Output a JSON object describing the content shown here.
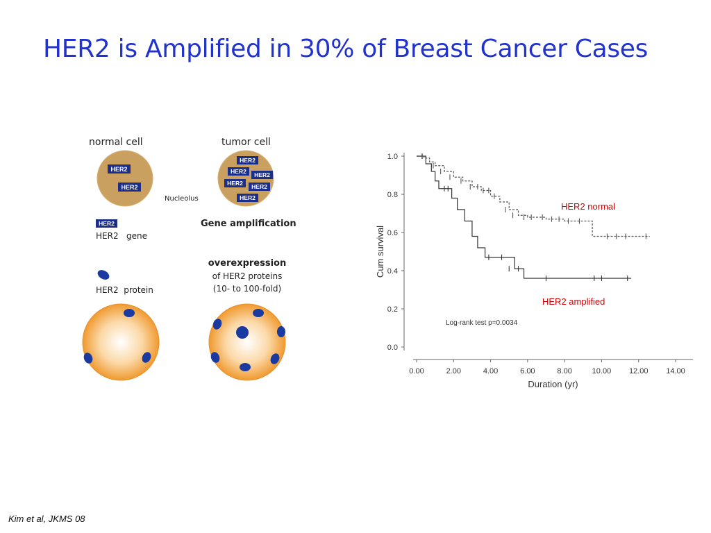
{
  "slide": {
    "title": "HER2 is Amplified in 30% of Breast Cancer Cases",
    "citation": "Kim et al, JKMS 08"
  },
  "diagram": {
    "normal_cell_label": "normal cell",
    "tumor_cell_label": "tumor cell",
    "gene_tag": "HER2",
    "nucleolus_label": "Nucleolus",
    "gene_legend_tag": "HER2",
    "gene_legend_text": "HER2   gene",
    "gene_amplification_label": "Gene amplification",
    "protein_legend_text": "HER2  protein",
    "overexpression_line1": "overexpression",
    "overexpression_line2": "of HER2 proteins",
    "overexpression_line3": "(10- to 100-fold)",
    "colors": {
      "cell": "#c9a060",
      "membrane": "#f0a040",
      "gene": "#1a2e8a",
      "protein": "#1a3aa0"
    }
  },
  "chart_data": {
    "type": "line",
    "xlabel": "Duration (yr)",
    "ylabel": "Cum survival",
    "xlim": [
      0,
      14
    ],
    "ylim": [
      0,
      1
    ],
    "x_ticks": [
      "0.00",
      "2.00",
      "4.00",
      "6.00",
      "8.00",
      "10.00",
      "12.00",
      "14.00"
    ],
    "y_ticks": [
      "0.0",
      "0.2",
      "0.4",
      "0.6",
      "0.8",
      "1.0"
    ],
    "annotation": "Log-rank test p=0.0034",
    "series": [
      {
        "name": "HER2 normal",
        "style": "dashed",
        "color": "#555555",
        "label_color": "#cc0000",
        "steps": [
          [
            0,
            1.0
          ],
          [
            0.4,
            0.99
          ],
          [
            0.7,
            0.97
          ],
          [
            1.0,
            0.95
          ],
          [
            1.5,
            0.92
          ],
          [
            2.0,
            0.89
          ],
          [
            2.5,
            0.87
          ],
          [
            3.0,
            0.84
          ],
          [
            3.5,
            0.82
          ],
          [
            4.0,
            0.79
          ],
          [
            4.5,
            0.76
          ],
          [
            5.0,
            0.72
          ],
          [
            5.5,
            0.69
          ],
          [
            6.0,
            0.68
          ],
          [
            7.0,
            0.67
          ],
          [
            8.0,
            0.66
          ],
          [
            9.5,
            0.58
          ],
          [
            12.6,
            0.58
          ]
        ],
        "censored": [
          [
            0.3,
            1.0
          ],
          [
            0.9,
            0.95
          ],
          [
            1.3,
            0.92
          ],
          [
            1.8,
            0.89
          ],
          [
            2.4,
            0.87
          ],
          [
            2.9,
            0.84
          ],
          [
            3.3,
            0.84
          ],
          [
            3.6,
            0.82
          ],
          [
            3.9,
            0.82
          ],
          [
            4.2,
            0.79
          ],
          [
            4.8,
            0.72
          ],
          [
            5.2,
            0.69
          ],
          [
            5.8,
            0.68
          ],
          [
            6.2,
            0.68
          ],
          [
            6.8,
            0.68
          ],
          [
            7.3,
            0.67
          ],
          [
            7.7,
            0.67
          ],
          [
            8.2,
            0.66
          ],
          [
            8.8,
            0.66
          ],
          [
            10.3,
            0.58
          ],
          [
            10.8,
            0.58
          ],
          [
            11.3,
            0.58
          ],
          [
            12.4,
            0.58
          ]
        ]
      },
      {
        "name": "HER2 amplified",
        "style": "solid",
        "color": "#333333",
        "label_color": "#cc0000",
        "steps": [
          [
            0,
            1.0
          ],
          [
            0.5,
            0.96
          ],
          [
            0.8,
            0.92
          ],
          [
            1.0,
            0.87
          ],
          [
            1.2,
            0.83
          ],
          [
            1.9,
            0.78
          ],
          [
            2.2,
            0.72
          ],
          [
            2.6,
            0.66
          ],
          [
            3.0,
            0.58
          ],
          [
            3.3,
            0.52
          ],
          [
            3.7,
            0.47
          ],
          [
            5.3,
            0.41
          ],
          [
            5.8,
            0.36
          ],
          [
            11.6,
            0.36
          ]
        ],
        "censored": [
          [
            0.3,
            1.0
          ],
          [
            1.5,
            0.83
          ],
          [
            1.7,
            0.83
          ],
          [
            3.9,
            0.47
          ],
          [
            4.6,
            0.47
          ],
          [
            5.0,
            0.41
          ],
          [
            5.5,
            0.41
          ],
          [
            7.0,
            0.36
          ],
          [
            9.6,
            0.36
          ],
          [
            10.0,
            0.36
          ],
          [
            11.4,
            0.36
          ]
        ]
      }
    ]
  }
}
